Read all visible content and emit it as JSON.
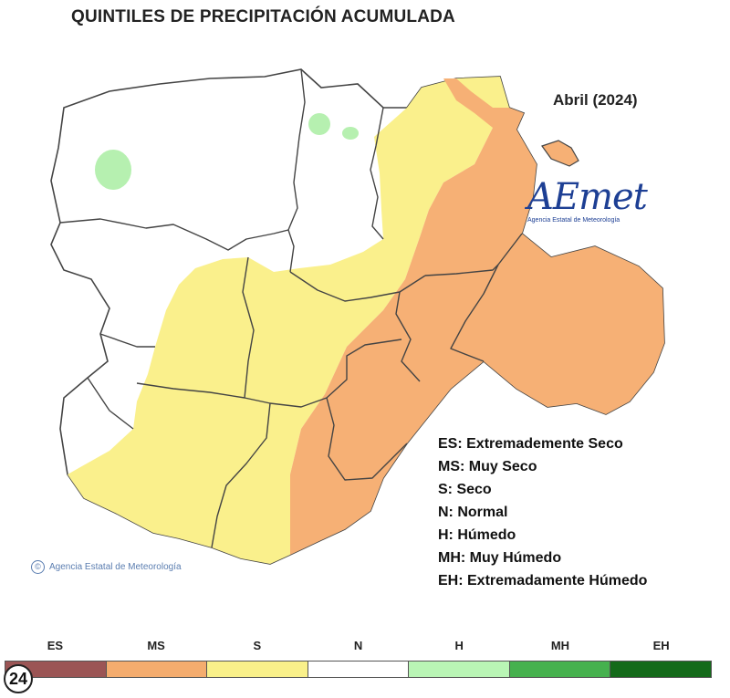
{
  "title": "QUINTILES DE PRECIPITACIÓN ACUMULADA",
  "period": "Abril (2024)",
  "logo": {
    "brand": "AEmet",
    "subtitle": "Agencia Estatal de Meteorología"
  },
  "credit": {
    "symbol": "©",
    "text": "Agencia Estatal de Meteorología"
  },
  "legend": [
    "ES: Extremademente Seco",
    "MS: Muy Seco",
    "S: Seco",
    "N: Normal",
    "H: Húmedo",
    "MH: Muy Húmedo",
    "EH: Extremadamente Húmedo"
  ],
  "scale": [
    {
      "code": "ES",
      "color": "#9b5555"
    },
    {
      "code": "MS",
      "color": "#f4ac6e"
    },
    {
      "code": "S",
      "color": "#f9f08a"
    },
    {
      "code": "N",
      "color": "#ffffff"
    },
    {
      "code": "H",
      "color": "#b9f5b5"
    },
    {
      "code": "MH",
      "color": "#46b14e"
    },
    {
      "code": "EH",
      "color": "#146a1a"
    }
  ],
  "badge": "24",
  "colors": {
    "dry": "#f6b075",
    "slightly_dry": "#faf08c",
    "normal": "#ffffff",
    "wet": "#b6f0b0",
    "border": "#444444"
  }
}
